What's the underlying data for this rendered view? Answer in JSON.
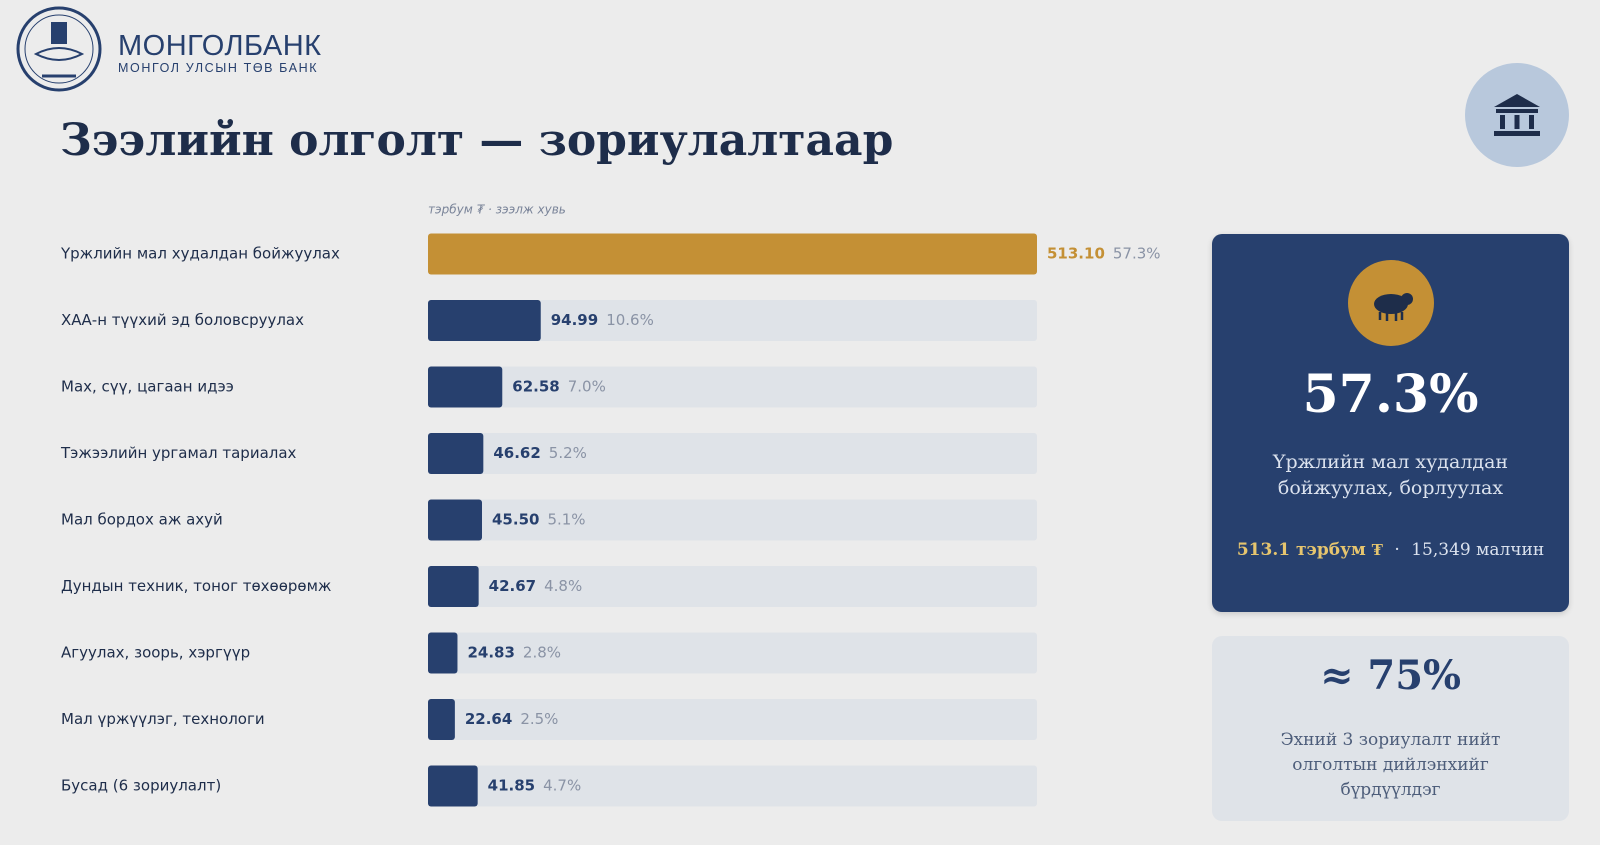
{
  "header": {
    "brand": "МОНГОЛБАНК",
    "brand_subtitle": "МОНГОЛ УЛСЫН ТӨВ БАНК",
    "title": "Зээлийн олголт — зориулалтаар"
  },
  "chart_data": {
    "type": "bar",
    "orientation": "horizontal",
    "x_label": "тэрбум ₮ · зээлж хувь",
    "categories": [
      "Үржлийн мал худалдан бойжуулах",
      "ХАА-н түүхий эд боловсруулах",
      "Мах, сүү, цагаан идээ",
      "Тэжээлийн ургамал тариалах",
      "Мал бордох аж ахуй",
      "Дундын техник, тоног төхөөрөмж",
      "Агуулах, зоорь, хэргүүр",
      "Мал үржүүлэг, технологи",
      "Бусад (6 зориулалт)"
    ],
    "values": [
      513.1,
      94.99,
      62.58,
      46.62,
      45.5,
      42.67,
      24.83,
      22.64,
      41.85
    ],
    "value_labels": [
      "513.10",
      "94.99",
      "62.58",
      "46.62",
      "45.50",
      "42.67",
      "24.83",
      "22.64",
      "41.85"
    ],
    "share_labels": [
      "57.3%",
      "10.6%",
      "7.0%",
      "5.2%",
      "5.1%",
      "4.8%",
      "2.8%",
      "2.5%",
      "4.7%"
    ],
    "colors": [
      "#c49035",
      "#27406e",
      "#27406e",
      "#27406e",
      "#27406e",
      "#27406e",
      "#27406e",
      "#27406e",
      "#27406e"
    ],
    "track_color": "#dfe3e8",
    "xlim": [
      0,
      513.1
    ]
  },
  "cards": [
    {
      "value": "57.3%",
      "text": "Үржлийн мал худалдан бойжуулах, борлуулах",
      "amount": "513.1 тэрбум ₮",
      "herders": "15,349 малчин"
    },
    {
      "value": "≈ 75%",
      "text": "Эхний 3 зориулалт нийт олголтын дийлэнхийг бүрдүүлдэг"
    }
  ]
}
